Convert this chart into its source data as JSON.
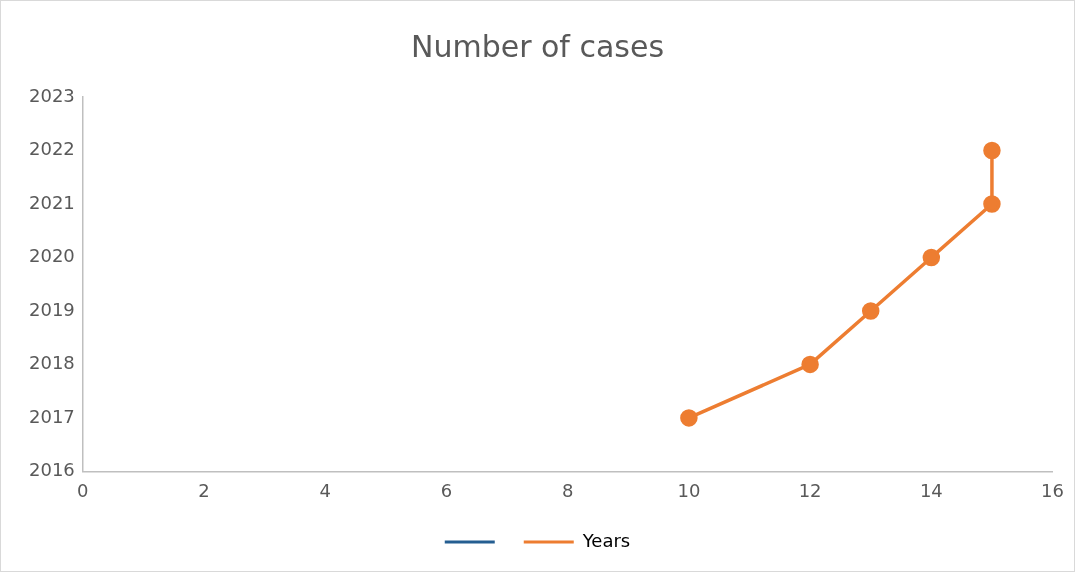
{
  "chart_data": {
    "type": "line",
    "title": "Number of cases",
    "series": [
      {
        "color": "#255e91"
      },
      {
        "name": "Years",
        "color": "#ed7d31",
        "x": [
          10,
          12,
          13,
          14,
          15,
          15
        ],
        "values": [
          2017,
          2018,
          2019,
          2020,
          2021,
          2022
        ]
      }
    ],
    "xlim": [
      0,
      16
    ],
    "xticks": [
      0,
      2,
      4,
      6,
      8,
      10,
      12,
      14,
      16
    ],
    "ylim": [
      2016,
      2023
    ],
    "yticks": [
      2016,
      2017,
      2018,
      2019,
      2020,
      2021,
      2022,
      2023
    ],
    "grid": false,
    "legend": "bottom",
    "marker": "circle",
    "line_style": "solid"
  }
}
